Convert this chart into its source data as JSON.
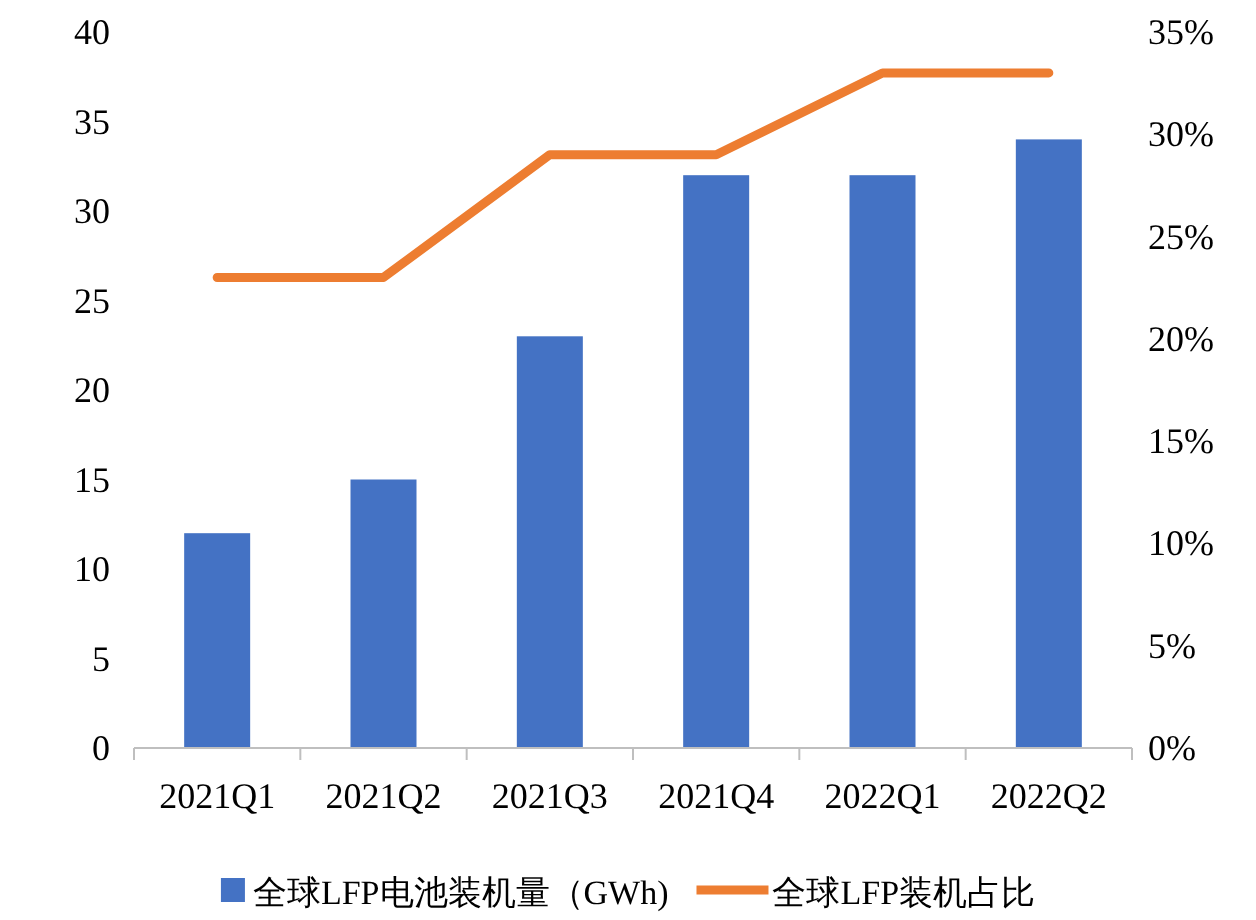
{
  "chart_data": {
    "type": "bar",
    "categories": [
      "2021Q1",
      "2021Q2",
      "2021Q3",
      "2021Q4",
      "2022Q1",
      "2022Q2"
    ],
    "series": [
      {
        "name": "全球LFP电池装机量（GWh)",
        "color": "#4472c4",
        "values": [
          12,
          15,
          23,
          32,
          32,
          34
        ]
      },
      {
        "name": "全球LFP装机占比",
        "type": "line",
        "color": "#ed7d31",
        "axis": "y2",
        "values": [
          23,
          23,
          29,
          29,
          33,
          33
        ]
      }
    ],
    "ylim": [
      0,
      40
    ],
    "yticks": [
      0,
      5,
      10,
      15,
      20,
      25,
      30,
      35,
      40
    ],
    "y2lim": [
      0,
      35
    ],
    "y2ticks": [
      {
        "value": 0,
        "label": "0%"
      },
      {
        "value": 5,
        "label": "5%"
      },
      {
        "value": 10,
        "label": "10%"
      },
      {
        "value": 15,
        "label": "15%"
      },
      {
        "value": 20,
        "label": "20%"
      },
      {
        "value": 25,
        "label": "25%"
      },
      {
        "value": 30,
        "label": "30%"
      },
      {
        "value": 35,
        "label": "35%"
      }
    ],
    "grid": false,
    "legend": "bottom"
  }
}
